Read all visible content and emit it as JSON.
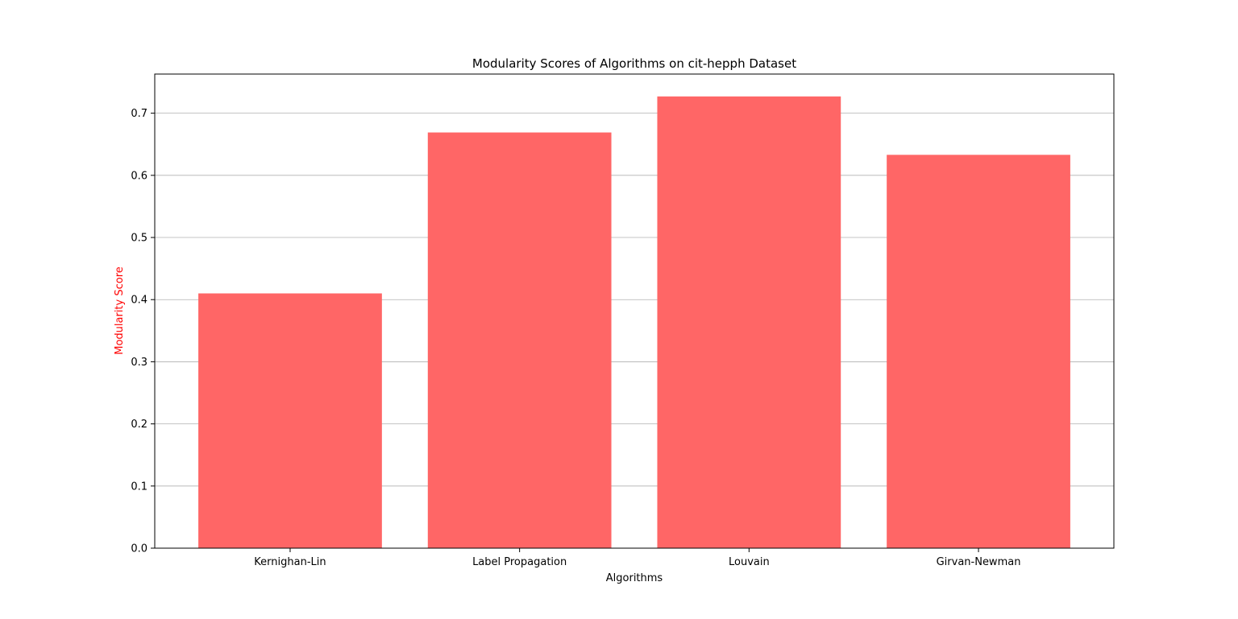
{
  "chart_data": {
    "type": "bar",
    "title": "Modularity Scores of Algorithms on cit-hepph Dataset",
    "xlabel": "Algorithms",
    "ylabel": "Modularity Score",
    "categories": [
      "Kernighan-Lin",
      "Label Propagation",
      "Louvain",
      "Girvan-Newman"
    ],
    "values": [
      0.41,
      0.669,
      0.727,
      0.633
    ],
    "ylim": [
      0,
      0.763
    ],
    "yticks": [
      0.0,
      0.1,
      0.2,
      0.3,
      0.4,
      0.5,
      0.6,
      0.7
    ],
    "ytick_labels": [
      "0.0",
      "0.1",
      "0.2",
      "0.3",
      "0.4",
      "0.5",
      "0.6",
      "0.7"
    ],
    "grid": "y",
    "legend": "none",
    "colors": {
      "bar": "#ff6666",
      "ylabel": "#ff0000",
      "grid": "#b0b0b0",
      "axis": "#000000"
    }
  }
}
